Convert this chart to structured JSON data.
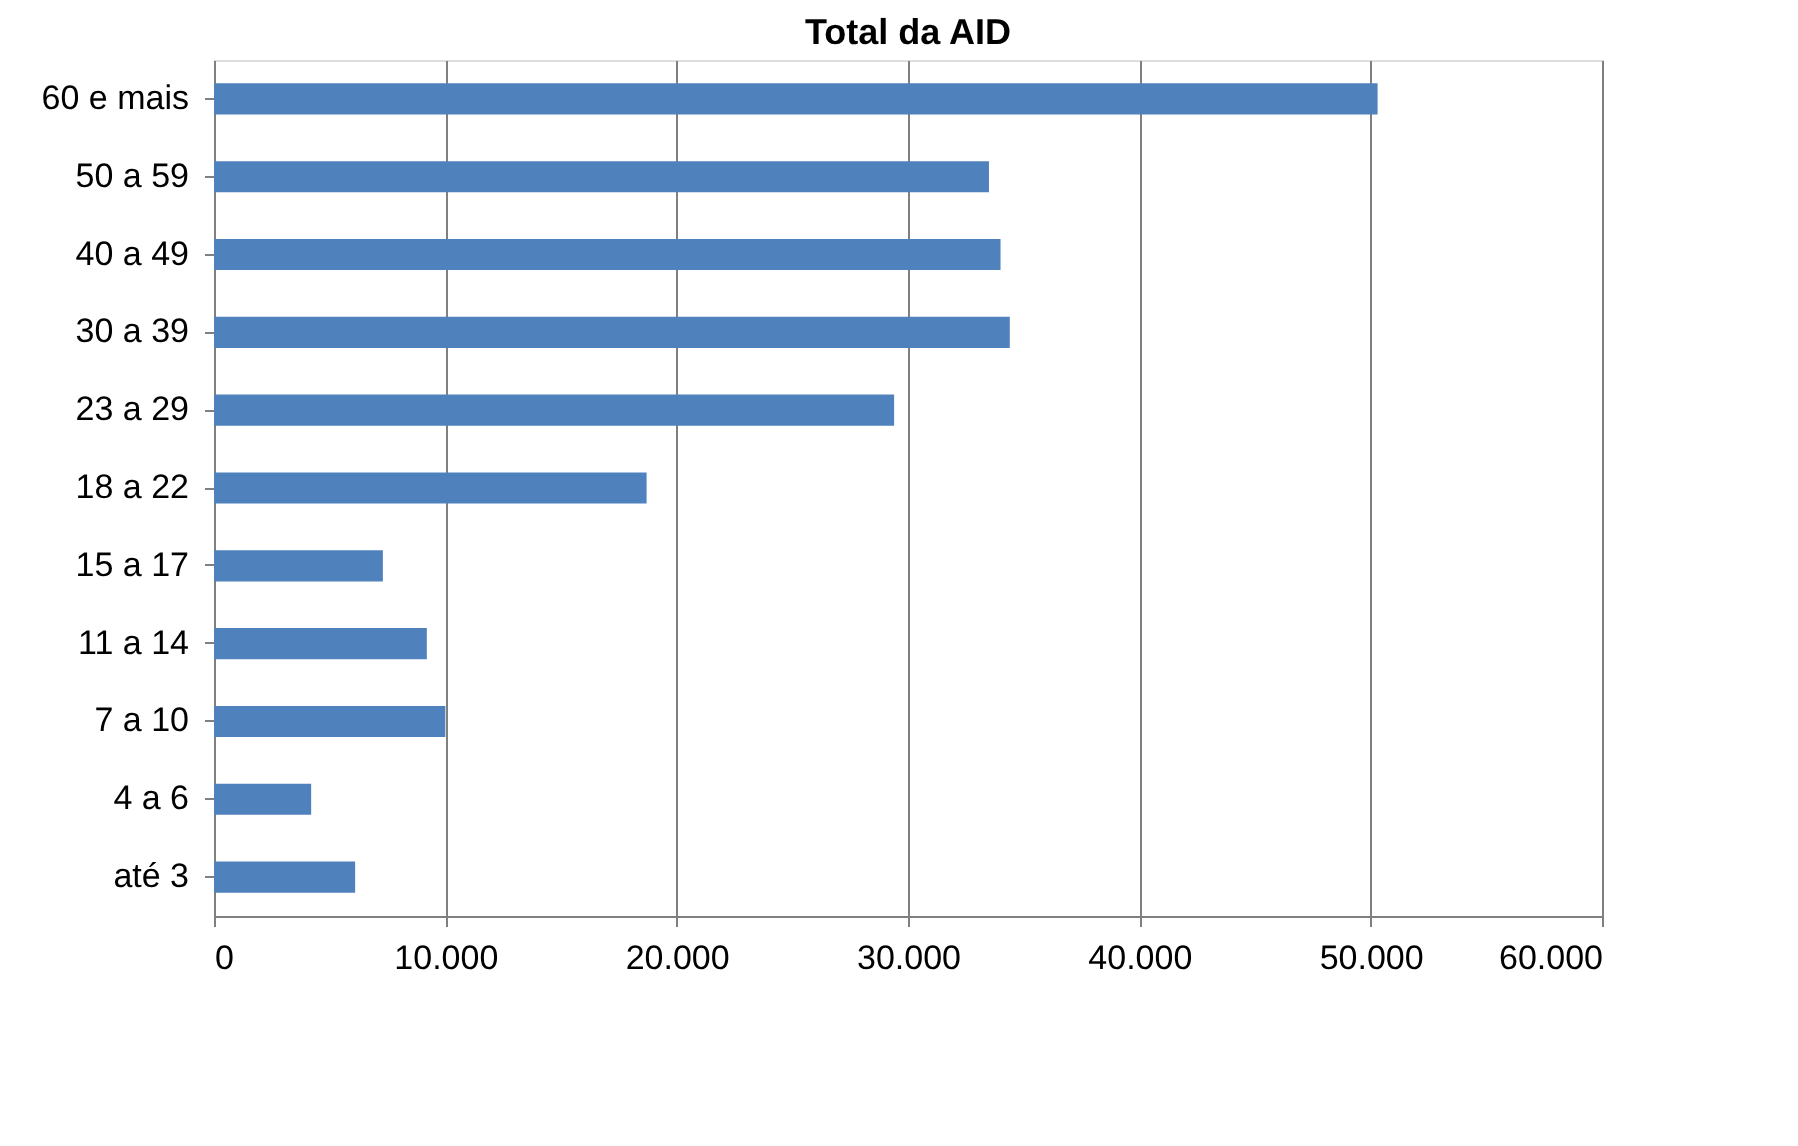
{
  "chart_data": {
    "type": "bar",
    "title": "Total da AID",
    "orientation": "horizontal",
    "categories": [
      "60 e mais",
      "50 a 59",
      "40 a 49",
      "30 a 39",
      "23 a 29",
      "18 a 22",
      "15 a 17",
      "11 a 14",
      "7 a 10",
      "4 a 6",
      "até 3"
    ],
    "values": [
      50300,
      33500,
      34000,
      34400,
      29400,
      18700,
      7300,
      9200,
      10000,
      4200,
      6100
    ],
    "color": "#4f81bd",
    "xlim": [
      0,
      60000
    ],
    "xticks": [
      0,
      {
        "value": 10000,
        "label": "10.000"
      },
      {
        "value": 20000,
        "label": "20.000"
      },
      {
        "value": 30000,
        "label": "30.000"
      },
      {
        "value": 40000,
        "label": "40.000"
      },
      {
        "value": 50000,
        "label": "50.000"
      },
      {
        "value": 60000,
        "label": "60.000"
      }
    ],
    "grid": "x"
  }
}
